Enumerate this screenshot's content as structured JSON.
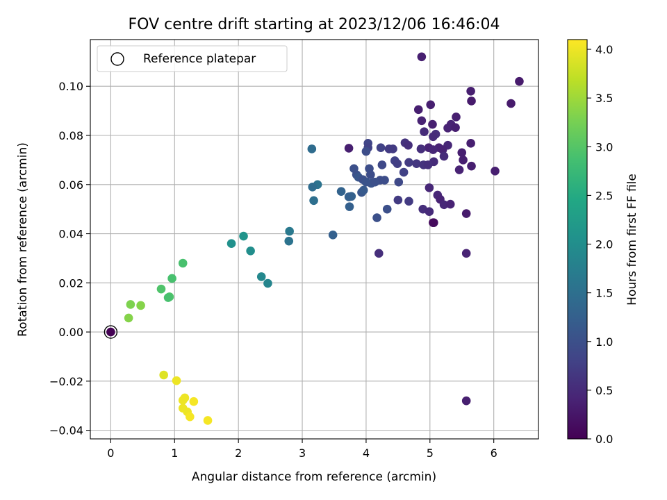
{
  "chart_data": {
    "type": "scatter",
    "title": "FOV centre drift starting at 2023/12/06 16:46:04",
    "xlabel": "Angular distance from reference (arcmin)",
    "ylabel": "Rotation from reference (arcmin)",
    "xlim": [
      -0.32,
      6.7
    ],
    "ylim": [
      -0.0435,
      0.119
    ],
    "xticks": [
      0,
      1,
      2,
      3,
      4,
      5,
      6
    ],
    "xtick_labels": [
      "0",
      "1",
      "2",
      "3",
      "4",
      "5",
      "6"
    ],
    "yticks": [
      -0.04,
      -0.02,
      0.0,
      0.02,
      0.04,
      0.06,
      0.08,
      0.1
    ],
    "ytick_labels": [
      "−0.04",
      "−0.02",
      "0.00",
      "0.02",
      "0.04",
      "0.06",
      "0.08",
      "0.10"
    ],
    "grid": true,
    "legend": {
      "position": "upper-left",
      "entries": [
        "Reference platepar"
      ]
    },
    "reference_point": {
      "x": 0.0,
      "y": 0.0
    },
    "colorbar": {
      "label": "Hours from first FF file",
      "colormap": "viridis",
      "range": [
        0.0,
        4.1
      ],
      "ticks": [
        0.0,
        0.5,
        1.0,
        1.5,
        2.0,
        2.5,
        3.0,
        3.5,
        4.0
      ],
      "tick_labels": [
        "0.0",
        "0.5",
        "1.0",
        "1.5",
        "2.0",
        "2.5",
        "3.0",
        "3.5",
        "4.0"
      ]
    },
    "series": [
      {
        "points": [
          [
            0.0,
            0.0,
            0.0
          ],
          [
            4.87,
            0.112,
            0.35
          ],
          [
            6.4,
            0.102,
            0.3
          ],
          [
            5.64,
            0.098,
            0.35
          ],
          [
            5.65,
            0.094,
            0.3
          ],
          [
            6.27,
            0.093,
            0.3
          ],
          [
            5.01,
            0.0925,
            0.35
          ],
          [
            4.82,
            0.0905,
            0.35
          ],
          [
            5.41,
            0.0875,
            0.35
          ],
          [
            4.87,
            0.086,
            0.4
          ],
          [
            5.04,
            0.0845,
            0.35
          ],
          [
            5.33,
            0.0845,
            0.4
          ],
          [
            5.28,
            0.083,
            0.4
          ],
          [
            5.4,
            0.0832,
            0.35
          ],
          [
            4.91,
            0.0815,
            0.5
          ],
          [
            5.09,
            0.0805,
            0.55
          ],
          [
            5.05,
            0.0795,
            0.5
          ],
          [
            4.61,
            0.077,
            0.6
          ],
          [
            4.03,
            0.0768,
            0.85
          ],
          [
            5.64,
            0.0768,
            0.35
          ],
          [
            4.66,
            0.076,
            0.55
          ],
          [
            5.28,
            0.076,
            0.45
          ],
          [
            4.03,
            0.075,
            0.8
          ],
          [
            4.23,
            0.075,
            0.8
          ],
          [
            4.98,
            0.075,
            0.4
          ],
          [
            5.14,
            0.075,
            0.4
          ],
          [
            3.73,
            0.0748,
            0.35
          ],
          [
            4.36,
            0.0745,
            0.7
          ],
          [
            4.42,
            0.0745,
            0.7
          ],
          [
            4.86,
            0.0745,
            0.55
          ],
          [
            5.05,
            0.0742,
            0.45
          ],
          [
            5.2,
            0.0742,
            0.4
          ],
          [
            3.15,
            0.0745,
            1.45
          ],
          [
            5.5,
            0.073,
            0.35
          ],
          [
            4.0,
            0.0735,
            0.95
          ],
          [
            5.22,
            0.0715,
            0.5
          ],
          [
            5.52,
            0.07,
            0.35
          ],
          [
            4.45,
            0.0697,
            0.8
          ],
          [
            4.67,
            0.069,
            0.7
          ],
          [
            4.49,
            0.0685,
            0.75
          ],
          [
            4.79,
            0.0685,
            0.65
          ],
          [
            5.06,
            0.0693,
            0.5
          ],
          [
            4.9,
            0.068,
            0.6
          ],
          [
            4.97,
            0.068,
            0.55
          ],
          [
            5.65,
            0.0675,
            0.35
          ],
          [
            4.25,
            0.068,
            0.9
          ],
          [
            3.81,
            0.0665,
            1.0
          ],
          [
            4.05,
            0.0665,
            0.95
          ],
          [
            5.46,
            0.066,
            0.4
          ],
          [
            6.02,
            0.0655,
            0.35
          ],
          [
            4.59,
            0.065,
            0.8
          ],
          [
            3.85,
            0.064,
            1.0
          ],
          [
            4.07,
            0.064,
            0.95
          ],
          [
            3.88,
            0.063,
            1.1
          ],
          [
            3.95,
            0.062,
            1.0
          ],
          [
            4.22,
            0.0618,
            0.95
          ],
          [
            4.29,
            0.0618,
            0.95
          ],
          [
            4.0,
            0.061,
            1.05
          ],
          [
            4.08,
            0.0605,
            1.05
          ],
          [
            4.14,
            0.061,
            1.0
          ],
          [
            4.51,
            0.061,
            0.9
          ],
          [
            3.24,
            0.06,
            1.55
          ],
          [
            3.16,
            0.059,
            1.45
          ],
          [
            4.99,
            0.0587,
            0.45
          ],
          [
            3.61,
            0.0572,
            1.3
          ],
          [
            3.93,
            0.0568,
            1.1
          ],
          [
            3.96,
            0.0577,
            1.15
          ],
          [
            5.12,
            0.0557,
            0.45
          ],
          [
            3.73,
            0.055,
            1.25
          ],
          [
            3.77,
            0.0552,
            1.25
          ],
          [
            5.16,
            0.054,
            0.4
          ],
          [
            3.18,
            0.0535,
            1.5
          ],
          [
            4.5,
            0.0537,
            0.7
          ],
          [
            4.67,
            0.0532,
            0.7
          ],
          [
            5.22,
            0.0518,
            0.45
          ],
          [
            5.32,
            0.052,
            0.4
          ],
          [
            3.74,
            0.051,
            1.25
          ],
          [
            4.33,
            0.05,
            1.0
          ],
          [
            4.89,
            0.05,
            0.55
          ],
          [
            4.99,
            0.049,
            0.5
          ],
          [
            5.57,
            0.0482,
            0.3
          ],
          [
            4.17,
            0.0465,
            1.0
          ],
          [
            5.06,
            0.0445,
            0.2
          ],
          [
            5.05,
            0.0445,
            0.1
          ],
          [
            3.48,
            0.0395,
            1.25
          ],
          [
            4.2,
            0.032,
            0.55
          ],
          [
            5.57,
            0.032,
            0.4
          ],
          [
            5.57,
            -0.028,
            0.35
          ],
          [
            2.8,
            0.041,
            1.65
          ],
          [
            2.79,
            0.037,
            1.55
          ],
          [
            2.08,
            0.039,
            2.1
          ],
          [
            1.89,
            0.036,
            2.05
          ],
          [
            2.19,
            0.033,
            2.0
          ],
          [
            2.36,
            0.0225,
            1.9
          ],
          [
            2.46,
            0.0198,
            1.85
          ],
          [
            1.13,
            0.028,
            2.9
          ],
          [
            0.96,
            0.0218,
            2.9
          ],
          [
            0.79,
            0.0175,
            2.95
          ],
          [
            0.92,
            0.0143,
            2.95
          ],
          [
            0.9,
            0.014,
            2.9
          ],
          [
            0.31,
            0.0112,
            3.3
          ],
          [
            0.47,
            0.0108,
            3.35
          ],
          [
            0.28,
            0.0057,
            3.35
          ],
          [
            0.83,
            -0.0175,
            3.9
          ],
          [
            1.03,
            -0.0198,
            4.0
          ],
          [
            1.16,
            -0.0268,
            4.0
          ],
          [
            1.13,
            -0.0278,
            4.0
          ],
          [
            1.3,
            -0.0283,
            4.05
          ],
          [
            1.13,
            -0.031,
            4.0
          ],
          [
            1.2,
            -0.0325,
            4.0
          ],
          [
            1.24,
            -0.0345,
            4.05
          ],
          [
            1.52,
            -0.036,
            4.05
          ]
        ]
      }
    ]
  }
}
